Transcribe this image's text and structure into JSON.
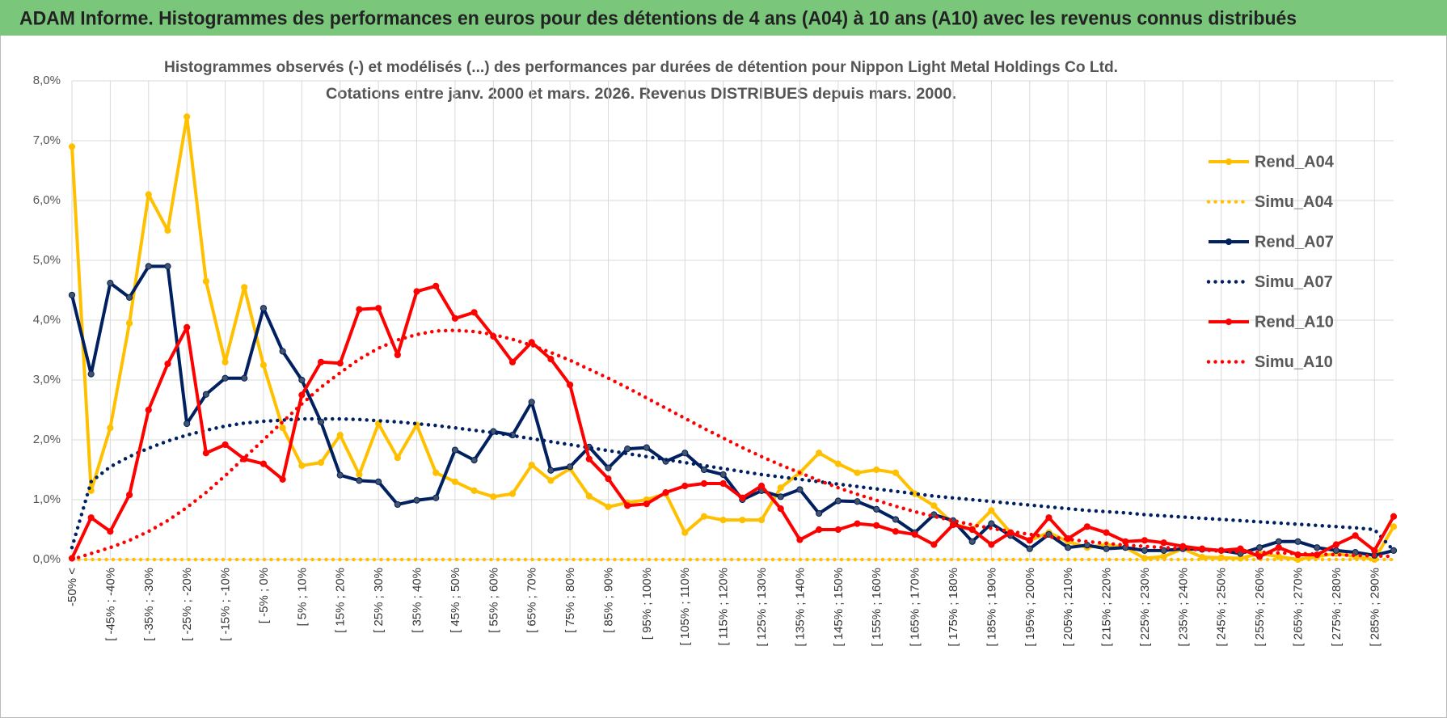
{
  "banner": "ADAM Informe. Histogrammes des performances en euros pour des détentions de 4 ans (A04) à 10 ans (A10) avec les revenus connus distribués",
  "chart_data": {
    "type": "line",
    "title": "Histogrammes observés (-) et modélisés (...) des performances par durées de détention pour Nippon Light Metal Holdings Co Ltd.",
    "subtitle": "Cotations entre janv. 2000 et mars. 2026.  Revenus DISTRIBUES depuis mars. 2000.",
    "categories": [
      "-50% <",
      null,
      "[ -45% ; -40%",
      null,
      "[ -35% ; -30%",
      null,
      "[ -25% ; -20%",
      null,
      "[ -15% ; -10%",
      null,
      "[ -5% ; 0%",
      null,
      "[ 5% ; 10%",
      null,
      "[ 15% ; 20%",
      null,
      "[ 25% ; 30%",
      null,
      "[ 35% ; 40%",
      null,
      "[ 45% ; 50%",
      null,
      "[ 55% ; 60%",
      null,
      "[ 65% ; 70%",
      null,
      "[ 75% ; 80%",
      null,
      "[ 85% ; 90%",
      null,
      "[ 95% ; 100%",
      null,
      "[ 105% ; 110%",
      null,
      "[ 115% ; 120%",
      null,
      "[ 125% ; 130%",
      null,
      "[ 135% ; 140%",
      null,
      "[ 145% ; 150%",
      null,
      "[ 155% ; 160%",
      null,
      "[ 165% ; 170%",
      null,
      "[ 175% ; 180%",
      null,
      "[ 185% ; 190%",
      null,
      "[ 195% ; 200%",
      null,
      "[ 205% ; 210%",
      null,
      "[ 215% ; 220%",
      null,
      "[ 225% ; 230%",
      null,
      "[ 235% ; 240%",
      null,
      "[ 245% ; 250%",
      null,
      "[ 255% ; 260%",
      null,
      "[ 265% ; 270%",
      null,
      "[ 275% ; 280%",
      null,
      "[ 285% ; 290%",
      null
    ],
    "series": [
      {
        "name": "Rend_A04",
        "color": "#FFC000",
        "line_style": "solid",
        "markers": true,
        "values": [
          6.9,
          1.15,
          2.2,
          3.95,
          6.1,
          5.5,
          7.4,
          4.65,
          3.3,
          4.55,
          3.25,
          2.2,
          1.57,
          1.62,
          2.08,
          1.42,
          2.27,
          1.7,
          2.25,
          1.45,
          1.3,
          1.15,
          1.05,
          1.1,
          1.58,
          1.32,
          1.52,
          1.06,
          0.88,
          0.95,
          1.0,
          1.1,
          0.45,
          0.72,
          0.66,
          0.66,
          0.66,
          1.2,
          1.45,
          1.78,
          1.6,
          1.45,
          1.5,
          1.45,
          1.1,
          0.9,
          0.6,
          0.5,
          0.82,
          0.45,
          0.32,
          0.45,
          0.3,
          0.2,
          0.25,
          0.2,
          0.02,
          0.05,
          0.18,
          0.04,
          0.03,
          0.02,
          0.1,
          0.05,
          0,
          0.05,
          0.1,
          0.05,
          0,
          0.55
        ]
      },
      {
        "name": "Simu_A04",
        "color": "#FFC000",
        "line_style": "dotted",
        "markers": false,
        "values": [
          0,
          0,
          0,
          0,
          0,
          0,
          0,
          0,
          0,
          0,
          0,
          0,
          0,
          0,
          0,
          0,
          0,
          0,
          0,
          0,
          0,
          0,
          0,
          0,
          0,
          0,
          0,
          0,
          0,
          0,
          0,
          0,
          0,
          0,
          0,
          0,
          0,
          0,
          0,
          0,
          0,
          0,
          0,
          0,
          0,
          0,
          0,
          0,
          0,
          0,
          0,
          0,
          0,
          0,
          0,
          0,
          0,
          0,
          0,
          0,
          0,
          0,
          0,
          0,
          0,
          0,
          0,
          0,
          0,
          0
        ]
      },
      {
        "name": "Rend_A07",
        "color": "#002060",
        "line_style": "solid",
        "markers": true,
        "values": [
          4.42,
          3.1,
          4.62,
          4.38,
          4.9,
          4.9,
          2.27,
          2.76,
          3.03,
          3.03,
          4.2,
          3.48,
          3.0,
          2.3,
          1.41,
          1.32,
          1.3,
          0.92,
          0.99,
          1.03,
          1.83,
          1.66,
          2.14,
          2.08,
          2.63,
          1.49,
          1.55,
          1.88,
          1.53,
          1.85,
          1.87,
          1.64,
          1.78,
          1.5,
          1.42,
          1.0,
          1.15,
          1.05,
          1.17,
          0.77,
          0.98,
          0.97,
          0.84,
          0.67,
          0.45,
          0.75,
          0.65,
          0.3,
          0.6,
          0.4,
          0.18,
          0.42,
          0.2,
          0.24,
          0.18,
          0.2,
          0.15,
          0.15,
          0.18,
          0.17,
          0.15,
          0.1,
          0.2,
          0.3,
          0.3,
          0.2,
          0.15,
          0.12,
          0.07,
          0.15
        ]
      },
      {
        "name": "Simu_A07",
        "color": "#002060",
        "line_style": "dotted",
        "markers": false,
        "values": [
          0.2,
          1.3,
          1.55,
          1.72,
          1.86,
          1.98,
          2.08,
          2.16,
          2.23,
          2.28,
          2.31,
          2.33,
          2.35,
          2.35,
          2.35,
          2.34,
          2.32,
          2.3,
          2.27,
          2.24,
          2.2,
          2.16,
          2.12,
          2.07,
          2.02,
          1.97,
          1.92,
          1.87,
          1.82,
          1.77,
          1.72,
          1.67,
          1.62,
          1.57,
          1.52,
          1.47,
          1.42,
          1.38,
          1.34,
          1.3,
          1.26,
          1.22,
          1.18,
          1.14,
          1.1,
          1.06,
          1.03,
          1.0,
          0.97,
          0.94,
          0.91,
          0.88,
          0.85,
          0.82,
          0.8,
          0.78,
          0.75,
          0.73,
          0.71,
          0.69,
          0.67,
          0.65,
          0.63,
          0.61,
          0.59,
          0.57,
          0.55,
          0.53,
          0.5,
          0.15
        ]
      },
      {
        "name": "Rend_A10",
        "color": "#FF0000",
        "line_style": "solid",
        "markers": true,
        "values": [
          0.02,
          0.7,
          0.47,
          1.08,
          2.5,
          3.27,
          3.88,
          1.78,
          1.92,
          1.68,
          1.6,
          1.34,
          2.75,
          3.3,
          3.28,
          4.18,
          4.2,
          3.42,
          4.48,
          4.57,
          4.03,
          4.13,
          3.73,
          3.3,
          3.63,
          3.35,
          2.92,
          1.68,
          1.35,
          0.9,
          0.93,
          1.12,
          1.23,
          1.27,
          1.27,
          1.03,
          1.23,
          0.85,
          0.33,
          0.5,
          0.5,
          0.6,
          0.57,
          0.47,
          0.42,
          0.25,
          0.58,
          0.5,
          0.25,
          0.45,
          0.32,
          0.7,
          0.35,
          0.55,
          0.45,
          0.3,
          0.32,
          0.28,
          0.22,
          0.18,
          0.15,
          0.18,
          0.05,
          0.2,
          0.08,
          0.08,
          0.25,
          0.4,
          0.15,
          0.72
        ]
      },
      {
        "name": "Simu_A10",
        "color": "#FF0000",
        "line_style": "dotted",
        "markers": false,
        "values": [
          0,
          0.1,
          0.2,
          0.32,
          0.47,
          0.65,
          0.87,
          1.12,
          1.4,
          1.7,
          2.0,
          2.3,
          2.6,
          2.88,
          3.12,
          3.35,
          3.53,
          3.67,
          3.76,
          3.82,
          3.83,
          3.81,
          3.76,
          3.68,
          3.58,
          3.46,
          3.33,
          3.18,
          3.03,
          2.87,
          2.7,
          2.53,
          2.36,
          2.19,
          2.03,
          1.87,
          1.72,
          1.58,
          1.45,
          1.32,
          1.2,
          1.09,
          0.99,
          0.89,
          0.8,
          0.72,
          0.65,
          0.58,
          0.52,
          0.47,
          0.42,
          0.38,
          0.34,
          0.3,
          0.27,
          0.24,
          0.22,
          0.2,
          0.18,
          0.16,
          0.14,
          0.13,
          0.12,
          0.11,
          0.1,
          0.09,
          0.08,
          0.07,
          0.06,
          0.05
        ]
      }
    ],
    "ylim": [
      0,
      8
    ],
    "yticks": [
      {
        "value": 0,
        "label": "0,0%"
      },
      {
        "value": 1,
        "label": "1,0%"
      },
      {
        "value": 2,
        "label": "2,0%"
      },
      {
        "value": 3,
        "label": "3,0%"
      },
      {
        "value": 4,
        "label": "4,0%"
      },
      {
        "value": 5,
        "label": "5,0%"
      },
      {
        "value": 6,
        "label": "6,0%"
      },
      {
        "value": 7,
        "label": "7,0%"
      },
      {
        "value": 8,
        "label": "8,0%"
      }
    ],
    "grid": true,
    "legend": "right"
  }
}
